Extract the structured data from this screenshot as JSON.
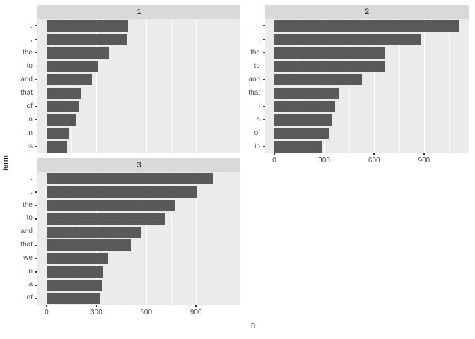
{
  "chart_data": {
    "type": "bar",
    "orientation": "horizontal",
    "title": "",
    "xlabel": "n",
    "ylabel": "term",
    "x_ticks": [
      0,
      300,
      600,
      900
    ],
    "x_minor_ticks": [
      150,
      450,
      750,
      1050
    ],
    "x_domain": [
      -55,
      1168
    ],
    "grid": true,
    "legend": "none",
    "facets": [
      {
        "label": "1",
        "row": 0,
        "col": 0,
        "show_x_axis": false,
        "terms": [
          ".",
          ",",
          "the",
          "to",
          "and",
          "that",
          "of",
          "a",
          "in",
          "is"
        ],
        "values": [
          490,
          480,
          375,
          311,
          272,
          205,
          195,
          177,
          134,
          122
        ]
      },
      {
        "label": "2",
        "row": 0,
        "col": 1,
        "show_x_axis": true,
        "terms": [
          ".",
          ",",
          "the",
          "to",
          "and",
          "that",
          "i",
          "a",
          "of",
          "in"
        ],
        "values": [
          1112,
          883,
          667,
          662,
          525,
          386,
          366,
          344,
          327,
          285
        ]
      },
      {
        "label": "3",
        "row": 1,
        "col": 0,
        "show_x_axis": true,
        "terms": [
          ".",
          ",",
          "the",
          "to",
          "and",
          "that",
          "we",
          "in",
          "a",
          "of"
        ],
        "values": [
          1000,
          908,
          775,
          713,
          569,
          513,
          370,
          340,
          336,
          325
        ]
      }
    ],
    "colors": {
      "bar": "#595959",
      "panel_bg": "#EBEBEB",
      "strip_bg": "#D9D9D9",
      "grid": "#FFFFFF",
      "tick_text": "#4D4D4D",
      "title_text": "#000000",
      "background": "#FFFFFF"
    }
  }
}
